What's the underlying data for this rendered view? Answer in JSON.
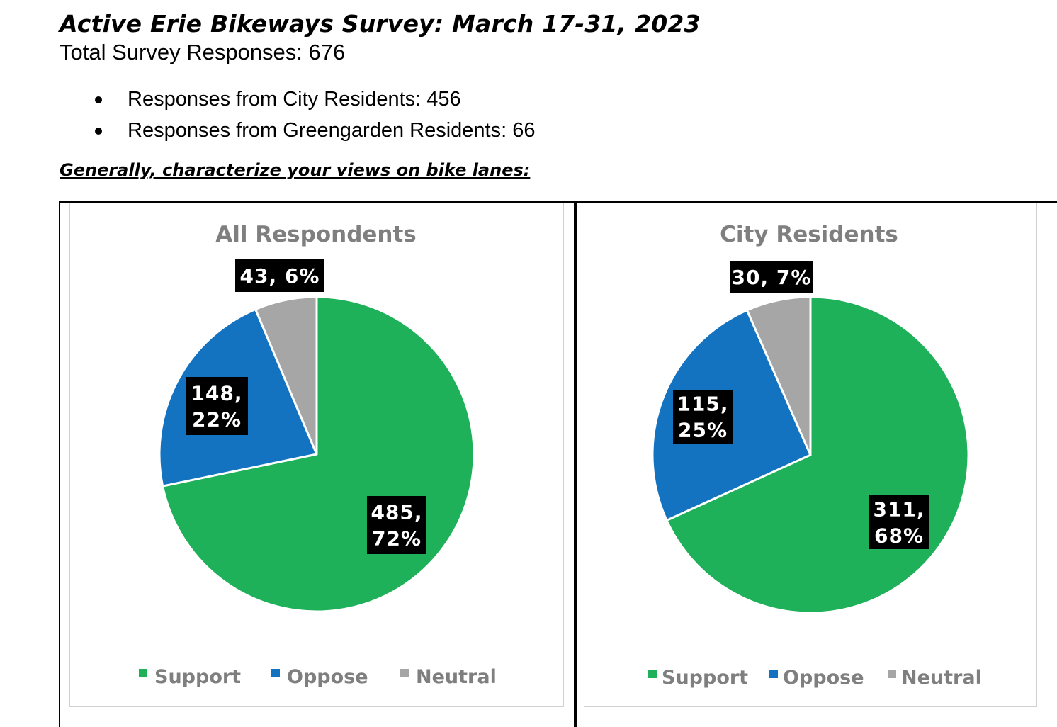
{
  "header": {
    "title": "Active Erie Bikeways Survey: March 17-31, 2023",
    "subtitle": "Total Survey Responses: 676",
    "bullets": [
      "Responses from City Residents: 456",
      "Responses from Greengarden Residents: 66"
    ],
    "question": "Generally, characterize your views on bike lanes:"
  },
  "colors": {
    "Support": "#1eb159",
    "Oppose": "#1473c1",
    "Neutral": "#a6a6a6"
  },
  "chart_data": [
    {
      "type": "pie",
      "title": "All Respondents",
      "categories": [
        "Support",
        "Oppose",
        "Neutral"
      ],
      "values": [
        485,
        148,
        43
      ],
      "percents": [
        72,
        22,
        6
      ],
      "data_labels": [
        [
          "485,",
          "72%"
        ],
        [
          "148,",
          "22%"
        ],
        [
          "43, 6%"
        ]
      ],
      "legend": [
        "Support",
        "Oppose",
        "Neutral"
      ],
      "legend_position": "bottom"
    },
    {
      "type": "pie",
      "title": "City Residents",
      "categories": [
        "Support",
        "Oppose",
        "Neutral"
      ],
      "values": [
        311,
        115,
        30
      ],
      "percents": [
        68,
        25,
        7
      ],
      "data_labels": [
        [
          "311,",
          "68%"
        ],
        [
          "115,",
          "25%"
        ],
        [
          "30, 7%"
        ]
      ],
      "legend": [
        "Support",
        "Oppose",
        "Neutral"
      ],
      "legend_position": "bottom"
    }
  ]
}
